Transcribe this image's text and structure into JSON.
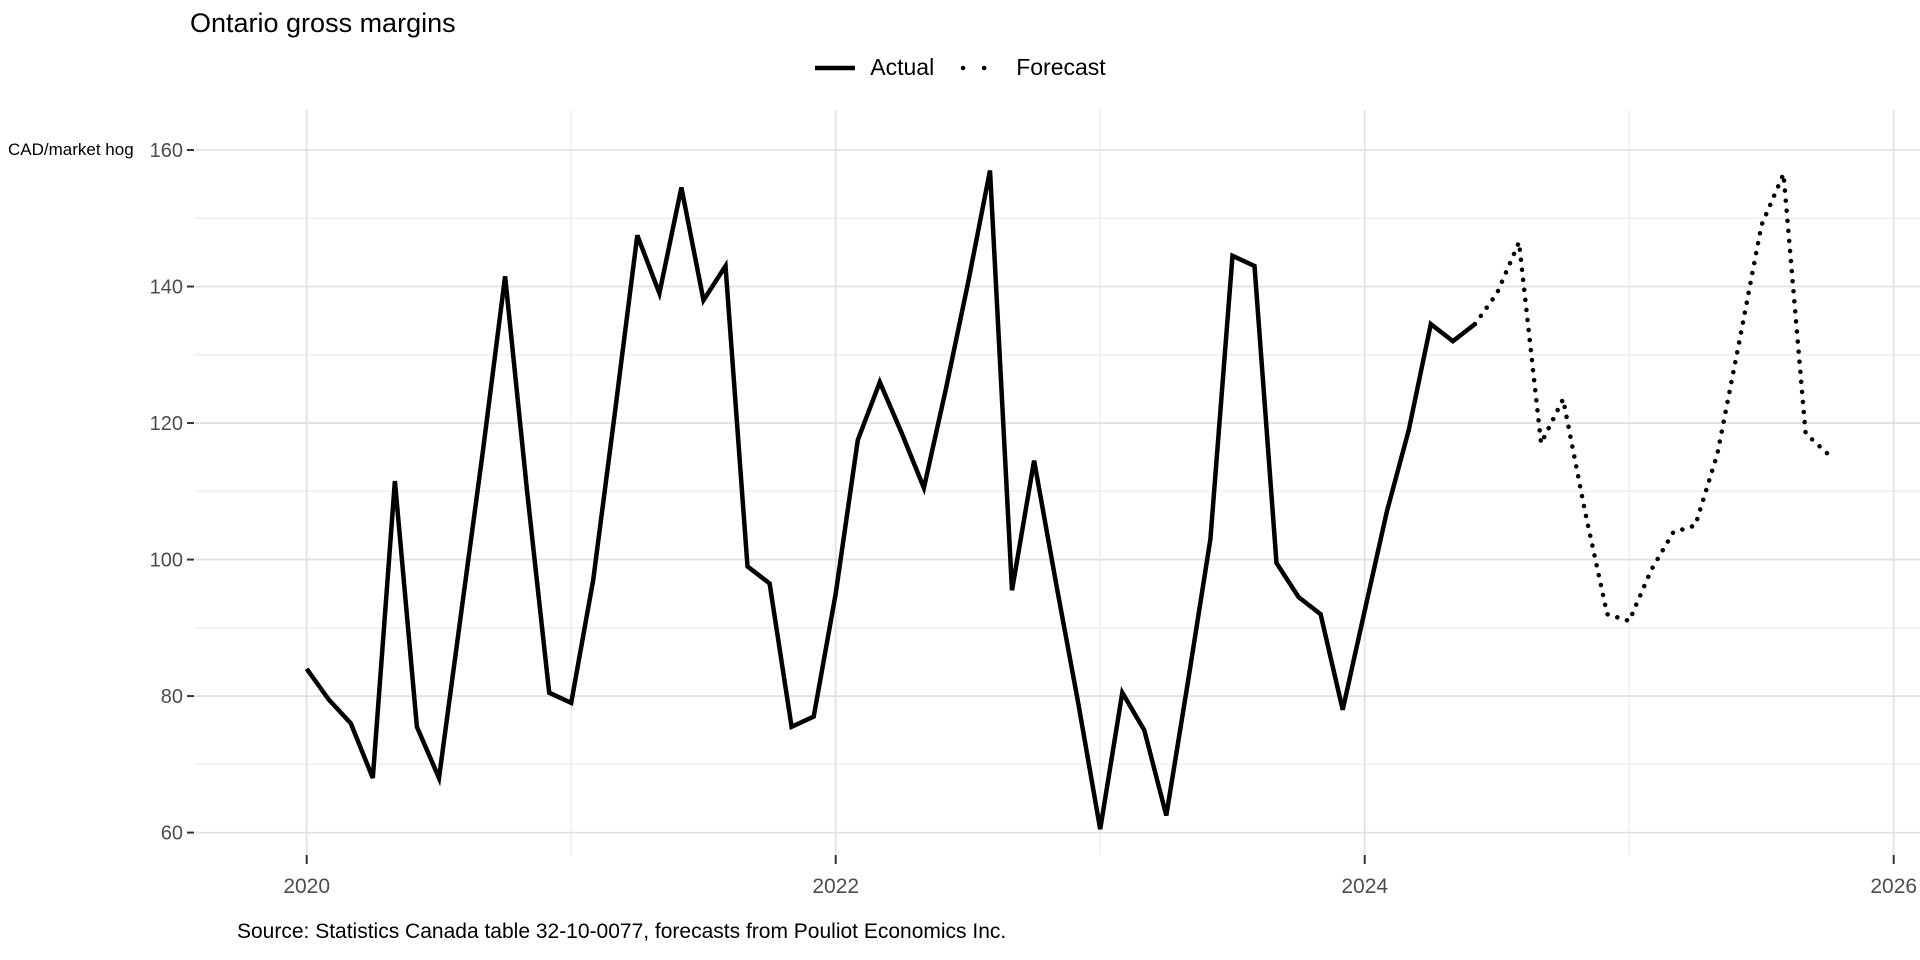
{
  "title": "Ontario gross margins",
  "y_axis_title": "CAD/market hog",
  "source_note": "Source: Statistics Canada table 32-10-0077, forecasts from Pouliot Economics Inc.",
  "legend": {
    "actual_label": "Actual",
    "forecast_label": "Forecast"
  },
  "colors": {
    "line": "#000000",
    "tick_label": "#4d4d4d",
    "grid_major": "#e2e2e2",
    "grid_minor": "#f0f0f0",
    "tick_mark": "#333333",
    "background": "#ffffff"
  },
  "chart_data": {
    "type": "line",
    "title": "Ontario gross margins",
    "ylabel": "CAD/market hog",
    "ylim": [
      60,
      160
    ],
    "y_major_ticks": [
      60,
      80,
      100,
      120,
      140,
      160
    ],
    "y_minor_ticks": [
      70,
      90,
      110,
      130,
      150
    ],
    "x_major_ticks": {
      "labels": [
        "2020",
        "2022",
        "2024",
        "2026"
      ],
      "month_index": [
        0,
        24,
        48,
        72
      ]
    },
    "x_minor_ticks": {
      "month_index": [
        12,
        36,
        60
      ]
    },
    "grid": "on",
    "legend_position": "top-center",
    "months": [
      "2020-01",
      "2020-02",
      "2020-03",
      "2020-04",
      "2020-05",
      "2020-06",
      "2020-07",
      "2020-08",
      "2020-09",
      "2020-10",
      "2020-11",
      "2020-12",
      "2021-01",
      "2021-02",
      "2021-03",
      "2021-04",
      "2021-05",
      "2021-06",
      "2021-07",
      "2021-08",
      "2021-09",
      "2021-10",
      "2021-11",
      "2021-12",
      "2022-01",
      "2022-02",
      "2022-03",
      "2022-04",
      "2022-05",
      "2022-06",
      "2022-07",
      "2022-08",
      "2022-09",
      "2022-10",
      "2022-11",
      "2022-12",
      "2023-01",
      "2023-02",
      "2023-03",
      "2023-04",
      "2023-05",
      "2023-06",
      "2023-07",
      "2023-08",
      "2023-09",
      "2023-10",
      "2023-11",
      "2023-12",
      "2024-01",
      "2024-02",
      "2024-03",
      "2024-04",
      "2024-05",
      "2024-06",
      "2024-07",
      "2024-08",
      "2024-09",
      "2024-10",
      "2024-11",
      "2024-12",
      "2025-01",
      "2025-02",
      "2025-03",
      "2025-04",
      "2025-05",
      "2025-06",
      "2025-07",
      "2025-08",
      "2025-09",
      "2025-10"
    ],
    "series": [
      {
        "name": "Actual",
        "style": "solid",
        "start_index": 0,
        "values": [
          84,
          79.5,
          76,
          68,
          111.5,
          75.5,
          68,
          92,
          116,
          141.5,
          110,
          80.5,
          79,
          97,
          122,
          147.5,
          139,
          154.5,
          138,
          143,
          99,
          96.5,
          75.5,
          77,
          95,
          117.5,
          126,
          118.5,
          110.5,
          125,
          140.5,
          157,
          95.5,
          114.5,
          96.5,
          79,
          60.5,
          80.5,
          75,
          62.5,
          82.5,
          103,
          144.5,
          143,
          99.5,
          94.5,
          92,
          78,
          92.5,
          107,
          119,
          134.5,
          132,
          134.5
        ]
      },
      {
        "name": "Forecast",
        "style": "dotted",
        "start_index": 53,
        "values": [
          134.5,
          139,
          146.5,
          117,
          123.5,
          107,
          92,
          91,
          98.5,
          104,
          105,
          115.5,
          132,
          149,
          156.5,
          118.5,
          115.5
        ]
      }
    ]
  }
}
